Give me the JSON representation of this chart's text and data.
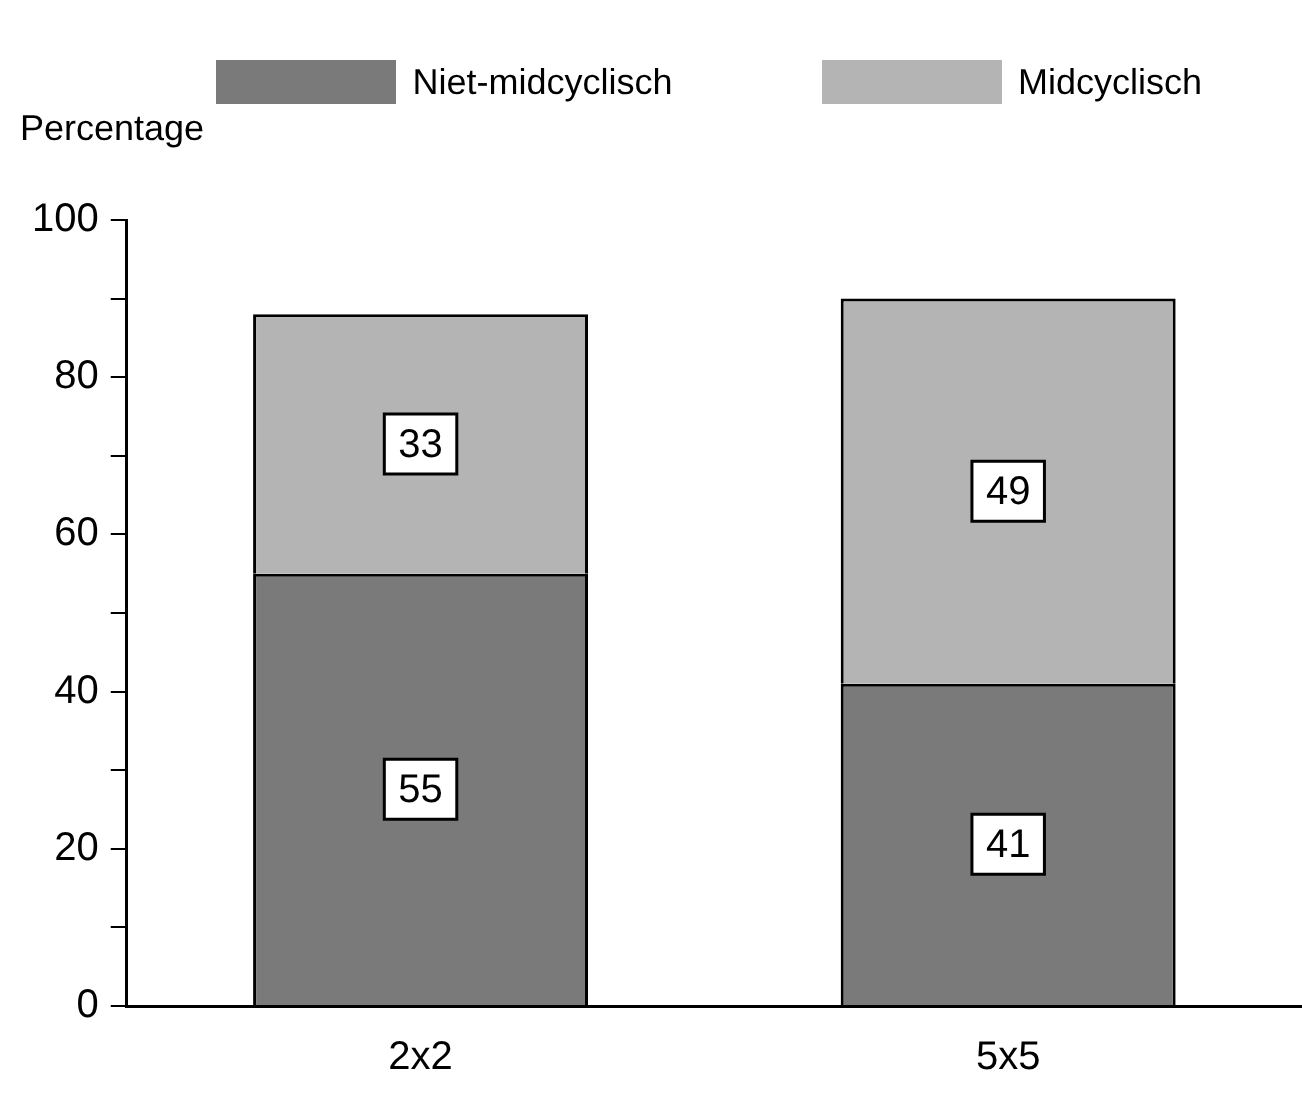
{
  "chart_data": {
    "type": "bar",
    "stacked": true,
    "ylabel": "Percentage",
    "categories": [
      "2x2",
      "5x5"
    ],
    "series": [
      {
        "name": "Niet-midcyclisch",
        "color": "#7a7a7a",
        "values": [
          55,
          41
        ]
      },
      {
        "name": "Midcyclisch",
        "color": "#b4b4b4",
        "values": [
          33,
          49
        ]
      }
    ],
    "ylim": [
      0,
      100
    ],
    "yticks": [
      0,
      {
        "value": 10,
        "label": null
      },
      20,
      {
        "value": 30,
        "label": null
      },
      40,
      {
        "value": 50,
        "label": null
      },
      60,
      {
        "value": 70,
        "label": null
      },
      80,
      {
        "value": 90,
        "label": null
      },
      100
    ],
    "grid": false,
    "legend": "top",
    "data_labels": true
  }
}
